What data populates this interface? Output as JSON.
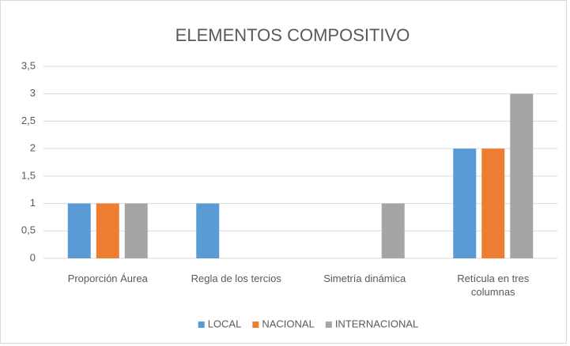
{
  "chart_data": {
    "type": "bar",
    "title": "ELEMENTOS COMPOSITIVO",
    "categories": [
      "Proporción Áurea",
      "Regla de los tercios",
      "Simetría dinámica",
      "Retícula en tres columnas"
    ],
    "series": [
      {
        "name": "LOCAL",
        "color": "#5b9bd5",
        "values": [
          1,
          1,
          0,
          2
        ]
      },
      {
        "name": "NACIONAL",
        "color": "#ed7d31",
        "values": [
          1,
          0,
          0,
          2
        ]
      },
      {
        "name": "INTERNACIONAL",
        "color": "#a5a5a5",
        "values": [
          1,
          0,
          1,
          3
        ]
      }
    ],
    "ylim": [
      0,
      3.5
    ],
    "yticks": [
      0,
      {
        "value": 0.5,
        "label": "0,5"
      },
      1,
      {
        "value": 1.5,
        "label": "1,5"
      },
      2,
      {
        "value": 2.5,
        "label": "2,5"
      },
      3,
      {
        "value": 3.5,
        "label": "3,5"
      }
    ],
    "grid": true,
    "legend": "bottom"
  }
}
